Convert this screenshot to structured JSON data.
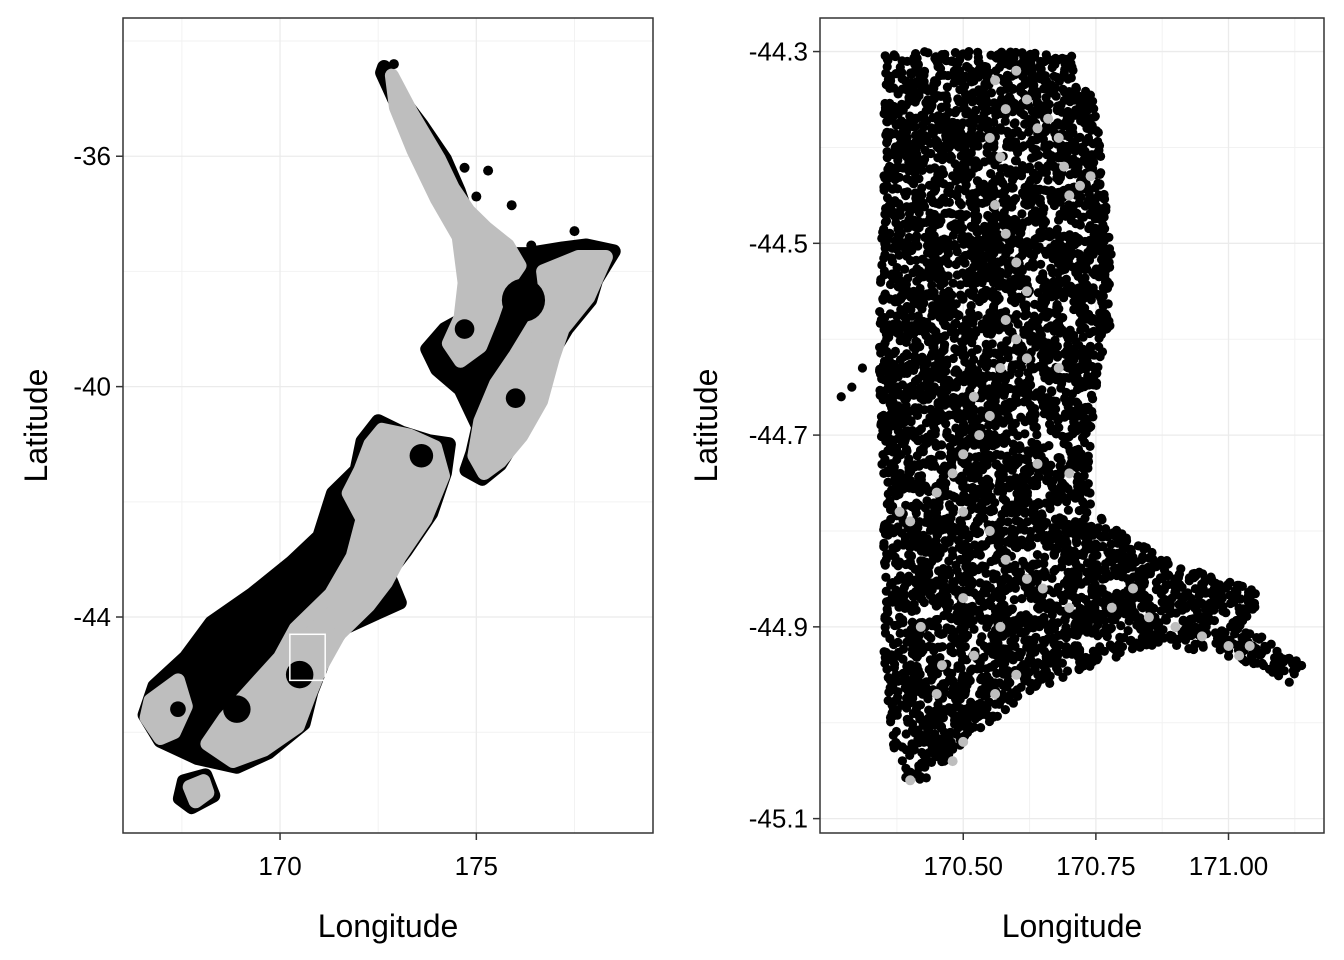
{
  "chart_data": [
    {
      "type": "scatter",
      "title": "",
      "xlabel": "Longitude",
      "ylabel": "Latitude",
      "xlim": [
        166.0,
        179.5
      ],
      "ylim": [
        -47.75,
        -33.6
      ],
      "x_ticks": [
        170,
        175
      ],
      "x_tick_labels": [
        "170",
        "175"
      ],
      "x_minor_breaks": [
        167.5,
        172.5,
        177.5
      ],
      "y_ticks": [
        -36,
        -40,
        -44
      ],
      "y_tick_labels": [
        "-36",
        "-40",
        "-44"
      ],
      "y_minor_breaks": [
        -34,
        -38,
        -42,
        -46
      ],
      "grid": true,
      "legend": "none",
      "colors": {
        "occupied": "#bebebe",
        "unoccupied": "#000000",
        "inset_box": "#ffffff"
      },
      "series": [
        {
          "color": "#000000",
          "description_only": false,
          "regions": [
            [
              [
                172.65,
                -34.45
              ],
              [
                173.1,
                -35.0
              ],
              [
                173.6,
                -35.45
              ],
              [
                174.2,
                -36.05
              ],
              [
                174.55,
                -36.6
              ],
              [
                174.75,
                -37.0
              ],
              [
                175.3,
                -37.35
              ],
              [
                175.9,
                -37.7
              ],
              [
                176.3,
                -37.7
              ],
              [
                177.2,
                -37.6
              ],
              [
                177.8,
                -37.55
              ],
              [
                178.5,
                -37.65
              ],
              [
                178.05,
                -38.15
              ],
              [
                177.9,
                -38.5
              ],
              [
                177.3,
                -39.0
              ],
              [
                176.9,
                -39.45
              ],
              [
                176.6,
                -40.2
              ],
              [
                176.1,
                -40.8
              ],
              [
                175.6,
                -41.35
              ],
              [
                175.15,
                -41.6
              ],
              [
                174.75,
                -41.45
              ],
              [
                174.9,
                -41.15
              ],
              [
                175.05,
                -40.7
              ],
              [
                174.6,
                -40.05
              ],
              [
                174.0,
                -39.7
              ],
              [
                173.75,
                -39.35
              ],
              [
                174.2,
                -39.0
              ],
              [
                174.6,
                -38.85
              ],
              [
                174.75,
                -38.1
              ],
              [
                174.6,
                -37.35
              ],
              [
                174.1,
                -36.7
              ],
              [
                173.45,
                -35.8
              ],
              [
                172.9,
                -35.0
              ],
              [
                172.6,
                -34.55
              ]
            ],
            [
              [
                172.5,
                -40.6
              ],
              [
                173.1,
                -40.8
              ],
              [
                173.8,
                -40.95
              ],
              [
                174.3,
                -41.0
              ],
              [
                174.2,
                -41.5
              ],
              [
                173.85,
                -42.2
              ],
              [
                173.2,
                -42.85
              ],
              [
                172.75,
                -43.25
              ],
              [
                173.05,
                -43.75
              ],
              [
                172.4,
                -43.95
              ],
              [
                171.6,
                -44.2
              ],
              [
                171.2,
                -44.6
              ],
              [
                170.8,
                -45.3
              ],
              [
                170.6,
                -45.85
              ],
              [
                169.7,
                -46.35
              ],
              [
                168.9,
                -46.6
              ],
              [
                167.9,
                -46.45
              ],
              [
                166.95,
                -46.15
              ],
              [
                166.55,
                -45.7
              ],
              [
                166.8,
                -45.2
              ],
              [
                167.6,
                -44.7
              ],
              [
                168.25,
                -44.1
              ],
              [
                169.3,
                -43.6
              ],
              [
                170.3,
                -43.05
              ],
              [
                171.0,
                -42.6
              ],
              [
                171.35,
                -41.85
              ],
              [
                171.95,
                -41.45
              ],
              [
                172.1,
                -40.95
              ]
            ],
            [
              [
                167.55,
                -46.85
              ],
              [
                168.1,
                -46.75
              ],
              [
                168.3,
                -47.1
              ],
              [
                167.75,
                -47.3
              ],
              [
                167.45,
                -47.15
              ]
            ]
          ]
        },
        {
          "color": "#bebebe",
          "regions": [
            [
              [
                172.85,
                -34.6
              ],
              [
                173.35,
                -35.25
              ],
              [
                174.05,
                -36.05
              ],
              [
                174.4,
                -36.55
              ],
              [
                174.8,
                -36.95
              ],
              [
                175.25,
                -37.25
              ],
              [
                175.8,
                -37.55
              ],
              [
                176.1,
                -37.9
              ],
              [
                175.6,
                -38.4
              ],
              [
                175.4,
                -38.8
              ],
              [
                175.1,
                -39.3
              ],
              [
                174.6,
                -39.55
              ],
              [
                174.3,
                -39.25
              ],
              [
                174.6,
                -38.8
              ],
              [
                174.7,
                -38.2
              ],
              [
                174.55,
                -37.4
              ],
              [
                174.0,
                -36.75
              ],
              [
                173.4,
                -35.9
              ],
              [
                172.95,
                -35.15
              ]
            ],
            [
              [
                176.7,
                -38.0
              ],
              [
                177.6,
                -37.75
              ],
              [
                178.3,
                -37.75
              ],
              [
                177.85,
                -38.45
              ],
              [
                177.2,
                -39.0
              ],
              [
                176.95,
                -39.5
              ],
              [
                176.65,
                -40.25
              ],
              [
                176.15,
                -40.85
              ],
              [
                175.6,
                -41.3
              ],
              [
                175.2,
                -41.5
              ],
              [
                174.95,
                -41.2
              ],
              [
                175.1,
                -40.6
              ],
              [
                175.5,
                -39.95
              ],
              [
                176.0,
                -39.45
              ],
              [
                176.4,
                -39.0
              ],
              [
                176.8,
                -38.55
              ]
            ],
            [
              [
                172.6,
                -40.75
              ],
              [
                173.3,
                -40.85
              ],
              [
                173.95,
                -41.05
              ],
              [
                174.15,
                -41.55
              ],
              [
                173.7,
                -42.3
              ],
              [
                173.05,
                -42.95
              ],
              [
                172.7,
                -43.4
              ],
              [
                172.25,
                -43.8
              ],
              [
                171.5,
                -44.3
              ],
              [
                171.05,
                -44.85
              ],
              [
                170.75,
                -45.35
              ],
              [
                170.45,
                -45.9
              ],
              [
                169.6,
                -46.3
              ],
              [
                168.8,
                -46.5
              ],
              [
                168.15,
                -46.2
              ],
              [
                168.6,
                -45.75
              ],
              [
                169.2,
                -45.3
              ],
              [
                170.0,
                -44.7
              ],
              [
                170.4,
                -44.2
              ],
              [
                171.3,
                -43.6
              ],
              [
                171.85,
                -42.95
              ],
              [
                172.1,
                -42.3
              ],
              [
                171.75,
                -41.85
              ],
              [
                172.05,
                -41.45
              ],
              [
                172.3,
                -41.0
              ]
            ],
            [
              [
                166.7,
                -45.45
              ],
              [
                167.4,
                -45.1
              ],
              [
                167.6,
                -45.55
              ],
              [
                167.3,
                -46.0
              ],
              [
                166.95,
                -46.1
              ],
              [
                166.6,
                -45.75
              ]
            ],
            [
              [
                167.7,
                -46.95
              ],
              [
                168.05,
                -46.85
              ],
              [
                168.15,
                -47.05
              ],
              [
                167.85,
                -47.2
              ]
            ]
          ]
        }
      ],
      "inset_box": {
        "x": [
          170.25,
          171.15
        ],
        "y": [
          -45.1,
          -44.3
        ]
      }
    },
    {
      "type": "scatter",
      "title": "",
      "xlabel": "Longitude",
      "ylabel": "Latitude",
      "xlim": [
        170.23,
        171.18
      ],
      "ylim": [
        -45.115,
        -44.265
      ],
      "x_ticks": [
        170.5,
        170.75,
        171.0
      ],
      "x_tick_labels": [
        "170.50",
        "170.75",
        "171.00"
      ],
      "x_minor_breaks": [
        170.375,
        170.625,
        170.875,
        171.125
      ],
      "y_ticks": [
        -44.3,
        -44.5,
        -44.7,
        -44.9,
        -45.1
      ],
      "y_tick_labels": [
        "-44.3",
        "-44.5",
        "-44.7",
        "-44.9",
        "-45.1"
      ],
      "y_minor_breaks": [
        -44.4,
        -44.6,
        -44.8,
        -45.0
      ],
      "grid": true,
      "legend": "none",
      "colors": {
        "occupied": "#bebebe",
        "unoccupied": "#000000"
      },
      "study_region": [
        [
          170.35,
          -44.3
        ],
        [
          170.7,
          -44.3
        ],
        [
          170.74,
          -44.34
        ],
        [
          170.76,
          -44.4
        ],
        [
          170.78,
          -44.5
        ],
        [
          170.78,
          -44.58
        ],
        [
          170.76,
          -44.62
        ],
        [
          170.74,
          -44.7
        ],
        [
          170.74,
          -44.78
        ],
        [
          170.8,
          -44.8
        ],
        [
          170.88,
          -44.83
        ],
        [
          170.98,
          -44.85
        ],
        [
          171.05,
          -44.86
        ],
        [
          171.06,
          -44.88
        ],
        [
          171.02,
          -44.9
        ],
        [
          171.1,
          -44.92
        ],
        [
          171.14,
          -44.94
        ],
        [
          171.12,
          -44.96
        ],
        [
          171.06,
          -44.94
        ],
        [
          170.98,
          -44.93
        ],
        [
          170.9,
          -44.92
        ],
        [
          170.8,
          -44.93
        ],
        [
          170.7,
          -44.95
        ],
        [
          170.62,
          -44.97
        ],
        [
          170.55,
          -45.0
        ],
        [
          170.5,
          -45.02
        ],
        [
          170.45,
          -45.05
        ],
        [
          170.4,
          -45.07
        ],
        [
          170.37,
          -45.03
        ],
        [
          170.35,
          -44.96
        ],
        [
          170.35,
          -44.8
        ],
        [
          170.34,
          -44.6
        ],
        [
          170.35,
          -44.4
        ]
      ],
      "occupied_points": [
        [
          170.56,
          -44.33
        ],
        [
          170.58,
          -44.36
        ],
        [
          170.6,
          -44.32
        ],
        [
          170.62,
          -44.35
        ],
        [
          170.64,
          -44.38
        ],
        [
          170.66,
          -44.37
        ],
        [
          170.68,
          -44.39
        ],
        [
          170.69,
          -44.42
        ],
        [
          170.7,
          -44.45
        ],
        [
          170.72,
          -44.44
        ],
        [
          170.74,
          -44.43
        ],
        [
          170.55,
          -44.39
        ],
        [
          170.57,
          -44.41
        ],
        [
          170.56,
          -44.46
        ],
        [
          170.58,
          -44.49
        ],
        [
          170.6,
          -44.52
        ],
        [
          170.62,
          -44.55
        ],
        [
          170.58,
          -44.58
        ],
        [
          170.6,
          -44.6
        ],
        [
          170.57,
          -44.63
        ],
        [
          170.52,
          -44.66
        ],
        [
          170.55,
          -44.68
        ],
        [
          170.53,
          -44.7
        ],
        [
          170.5,
          -44.72
        ],
        [
          170.48,
          -44.74
        ],
        [
          170.45,
          -44.76
        ],
        [
          170.5,
          -44.78
        ],
        [
          170.55,
          -44.8
        ],
        [
          170.58,
          -44.83
        ],
        [
          170.62,
          -44.85
        ],
        [
          170.65,
          -44.86
        ],
        [
          170.7,
          -44.88
        ],
        [
          170.78,
          -44.88
        ],
        [
          170.82,
          -44.86
        ],
        [
          170.85,
          -44.89
        ],
        [
          170.9,
          -44.9
        ],
        [
          170.95,
          -44.91
        ],
        [
          171.0,
          -44.92
        ],
        [
          171.02,
          -44.93
        ],
        [
          171.04,
          -44.92
        ],
        [
          170.4,
          -44.79
        ],
        [
          170.38,
          -44.78
        ],
        [
          170.42,
          -44.9
        ],
        [
          170.45,
          -44.97
        ],
        [
          170.5,
          -45.02
        ],
        [
          170.48,
          -45.04
        ],
        [
          170.4,
          -45.06
        ],
        [
          170.62,
          -44.62
        ],
        [
          170.68,
          -44.63
        ],
        [
          170.64,
          -44.73
        ],
        [
          170.7,
          -44.74
        ],
        [
          170.52,
          -44.93
        ],
        [
          170.56,
          -44.97
        ],
        [
          170.6,
          -44.95
        ],
        [
          170.57,
          -44.9
        ],
        [
          170.46,
          -44.94
        ],
        [
          170.5,
          -44.87
        ]
      ]
    }
  ]
}
